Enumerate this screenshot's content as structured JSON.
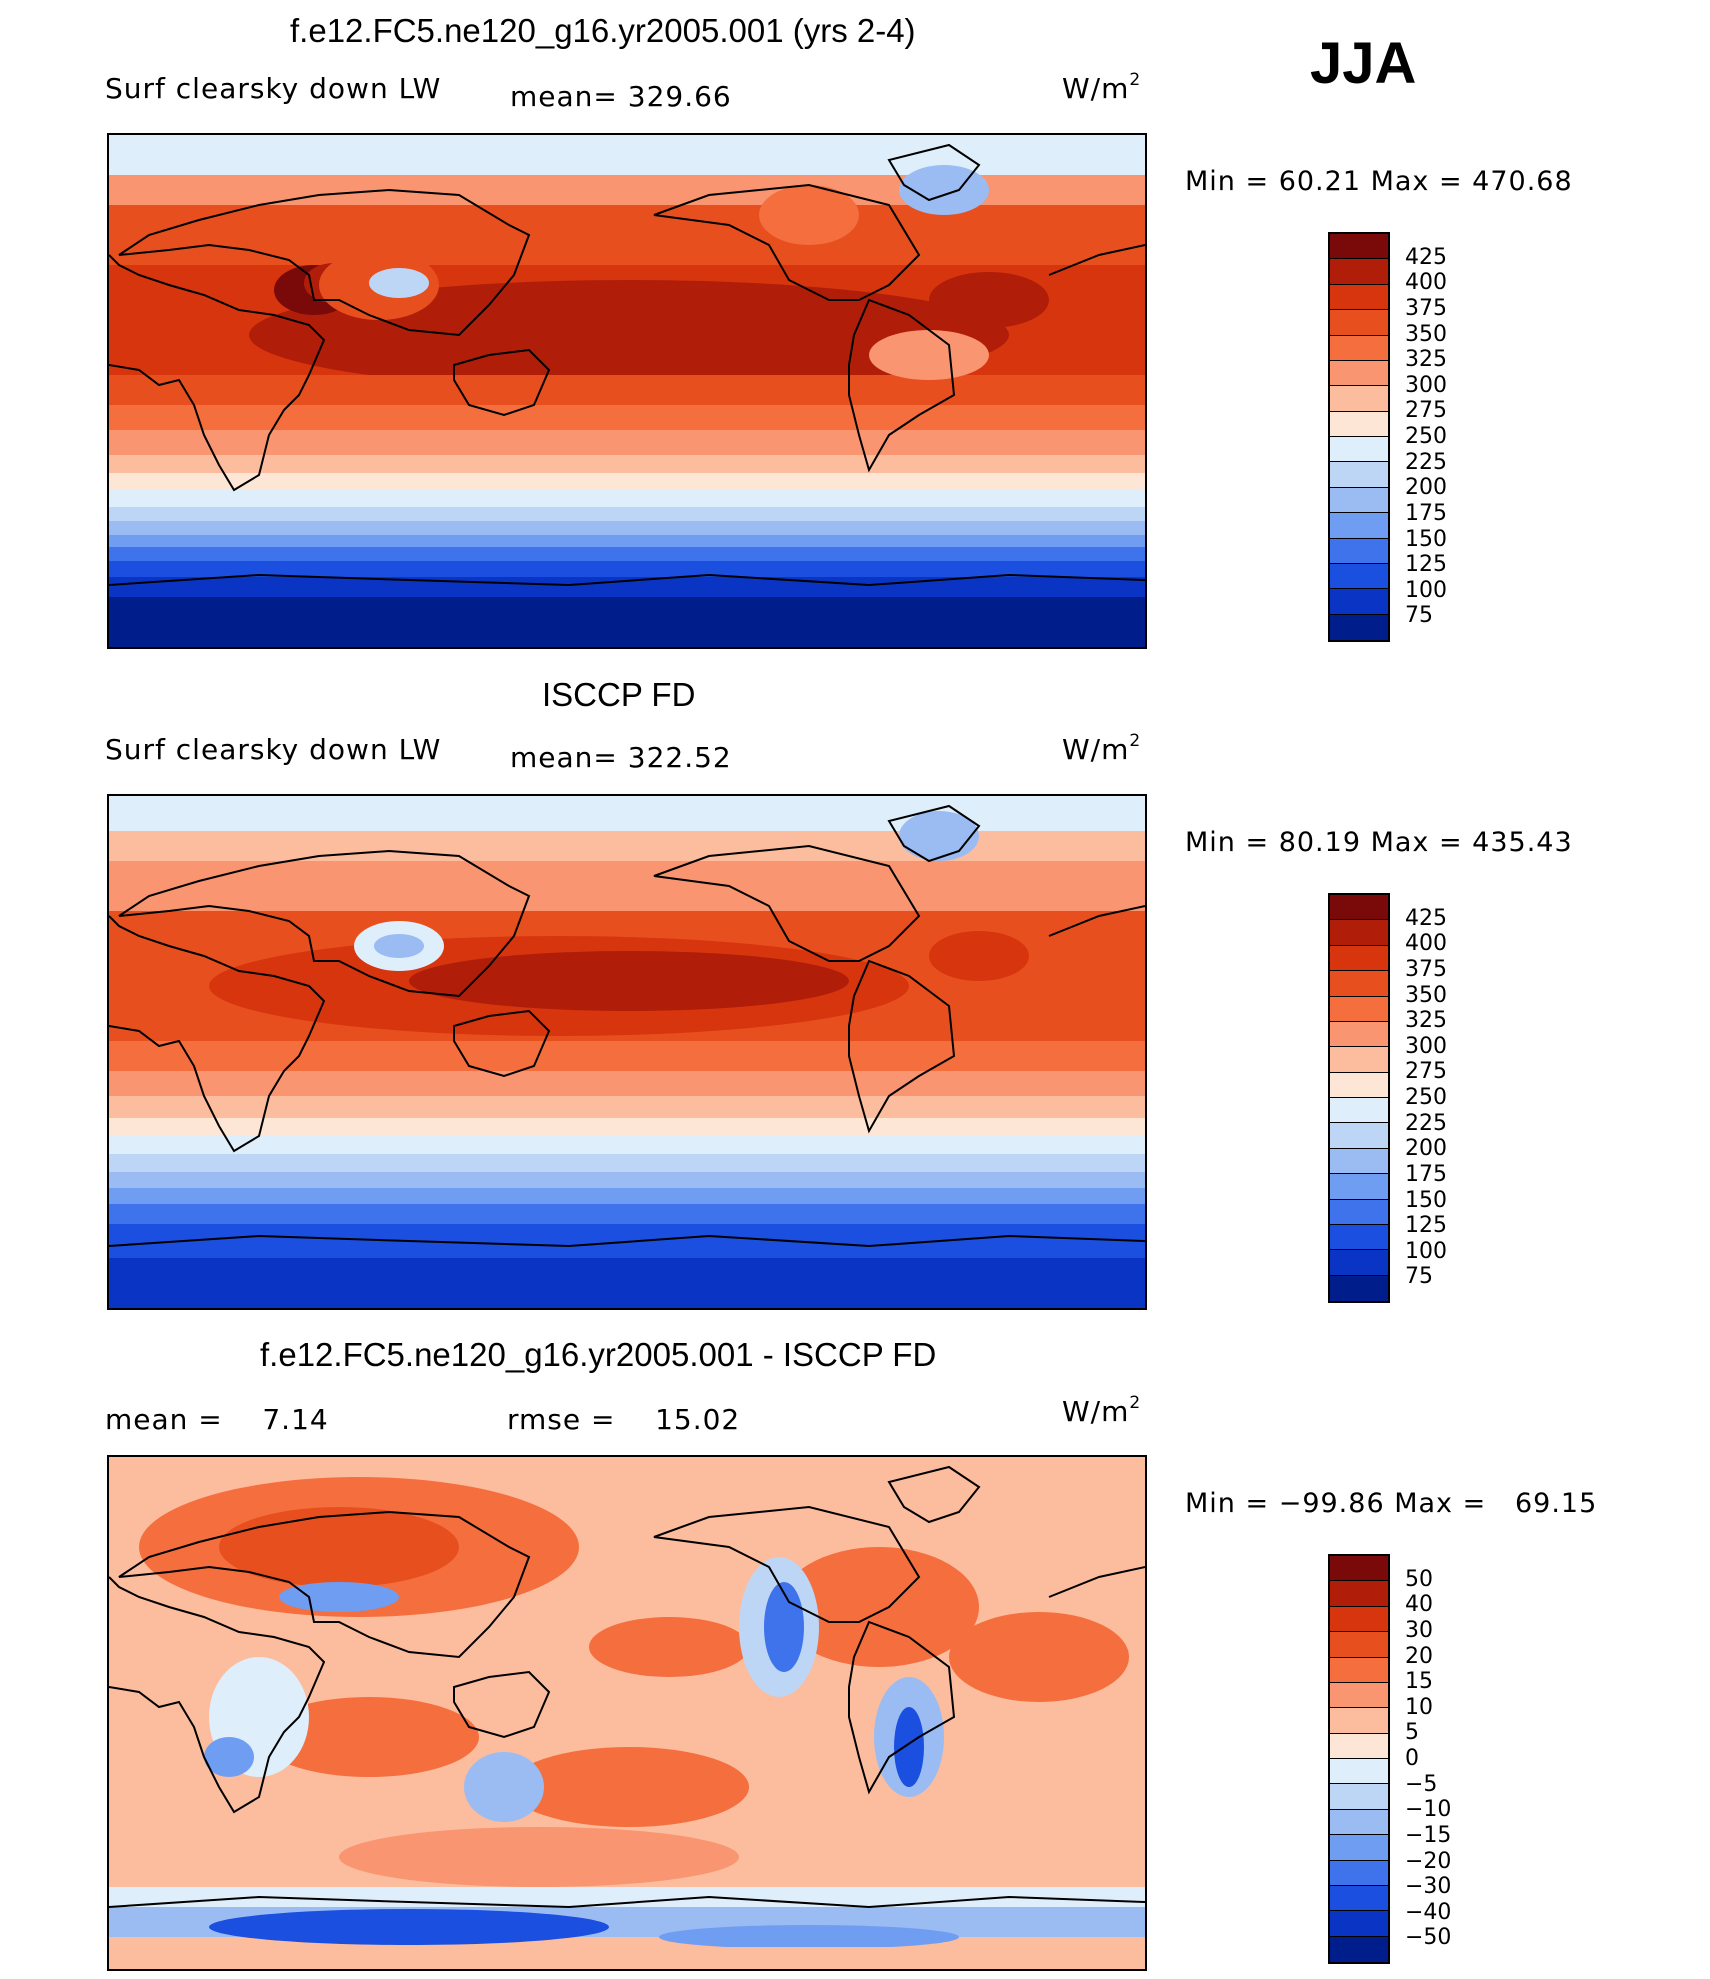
{
  "season": "JJA",
  "panels": [
    {
      "title": "f.e12.FC5.ne120_g16.yr2005.001 (yrs 2-4)",
      "left_label": "Surf clearsky down LW",
      "mid_label": "mean= 329.66",
      "unit": "W/m",
      "unit_exp": "2",
      "minmax": "Min =   60.21 Max = 470.68",
      "levels": [
        "425",
        "400",
        "375",
        "350",
        "325",
        "300",
        "275",
        "250",
        "225",
        "200",
        "175",
        "150",
        "125",
        "100",
        "75"
      ],
      "colors": [
        "#7a0a0a",
        "#b01e0a",
        "#d7350e",
        "#e84f1e",
        "#f46e3e",
        "#f99570",
        "#fcbc9e",
        "#fde6d6",
        "#dfeefb",
        "#bdd6f6",
        "#9abcf3",
        "#6f9df2",
        "#3f73ec",
        "#1a4fe0",
        "#0a35c4",
        "#001d8c"
      ]
    },
    {
      "title": "ISCCP FD",
      "left_label": "Surf clearsky down LW",
      "mid_label": "mean= 322.52",
      "unit": "W/m",
      "unit_exp": "2",
      "minmax": "Min =   80.19 Max = 435.43",
      "levels": [
        "425",
        "400",
        "375",
        "350",
        "325",
        "300",
        "275",
        "250",
        "225",
        "200",
        "175",
        "150",
        "125",
        "100",
        "75"
      ],
      "colors": [
        "#7a0a0a",
        "#b01e0a",
        "#d7350e",
        "#e84f1e",
        "#f46e3e",
        "#f99570",
        "#fcbc9e",
        "#fde6d6",
        "#dfeefb",
        "#bdd6f6",
        "#9abcf3",
        "#6f9df2",
        "#3f73ec",
        "#1a4fe0",
        "#0a35c4",
        "#001d8c"
      ]
    },
    {
      "title": "f.e12.FC5.ne120_g16.yr2005.001 - ISCCP FD",
      "left_label": "mean =    7.14",
      "mid_label": "rmse =    15.02",
      "unit": "W/m",
      "unit_exp": "2",
      "minmax": "Min = −99.86 Max =   69.15",
      "levels": [
        "50",
        "40",
        "30",
        "20",
        "15",
        "10",
        "5",
        "0",
        "−5",
        "−10",
        "−15",
        "−20",
        "−30",
        "−40",
        "−50"
      ],
      "colors": [
        "#7a0a0a",
        "#b01e0a",
        "#d7350e",
        "#e84f1e",
        "#f46e3e",
        "#f99570",
        "#fcbc9e",
        "#fde6d6",
        "#dfeefb",
        "#bdd6f6",
        "#9abcf3",
        "#6f9df2",
        "#3f73ec",
        "#1a4fe0",
        "#0a35c4",
        "#001d8c"
      ]
    }
  ]
}
